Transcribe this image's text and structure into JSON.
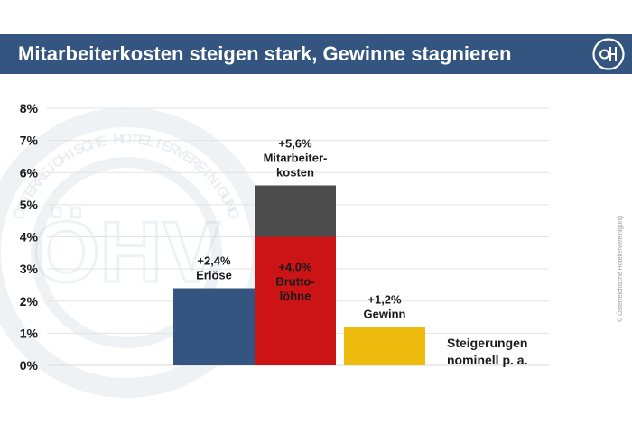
{
  "header": {
    "title": "Mitarbeiterkosten steigen stark, Gewinne stagnieren",
    "logo_text": "ÖHV"
  },
  "watermark_text": "ÖSTERREICHISCHE HOTELIERVEREINIGUNG",
  "copyright": "© Österreichische Hoteliervereinigung",
  "chart_data": {
    "type": "bar",
    "title": "Mitarbeiterkosten steigen stark, Gewinne stagnieren",
    "xlabel": "",
    "ylabel": "",
    "ylim": [
      0,
      8
    ],
    "yticks": [
      "0%",
      "1%",
      "2%",
      "3%",
      "4%",
      "5%",
      "6%",
      "7%",
      "8%"
    ],
    "grid": true,
    "bars": [
      {
        "id": "erloese",
        "segments": [
          {
            "value": 2.4,
            "color": "#33557f"
          }
        ],
        "label_lines": [
          "+2,4%",
          "Erlöse"
        ],
        "label_position": "above"
      },
      {
        "id": "mitarbeiterkosten",
        "segments": [
          {
            "value": 4.0,
            "color": "#cc1417",
            "label_lines": [
              "+4,0%",
              "Brutto-",
              "löhne"
            ]
          },
          {
            "value": 1.6,
            "color": "#4b4b4b"
          }
        ],
        "label_lines": [
          "+5,6%",
          "Mitarbeiter-",
          "kosten"
        ],
        "label_position": "above"
      },
      {
        "id": "gewinn",
        "segments": [
          {
            "value": 1.2,
            "color": "#edbb0d"
          }
        ],
        "label_lines": [
          "+1,2%",
          "Gewinn"
        ],
        "label_position": "above"
      }
    ],
    "annotation_lines": [
      "Steigerungen",
      "nominell p. a."
    ]
  }
}
